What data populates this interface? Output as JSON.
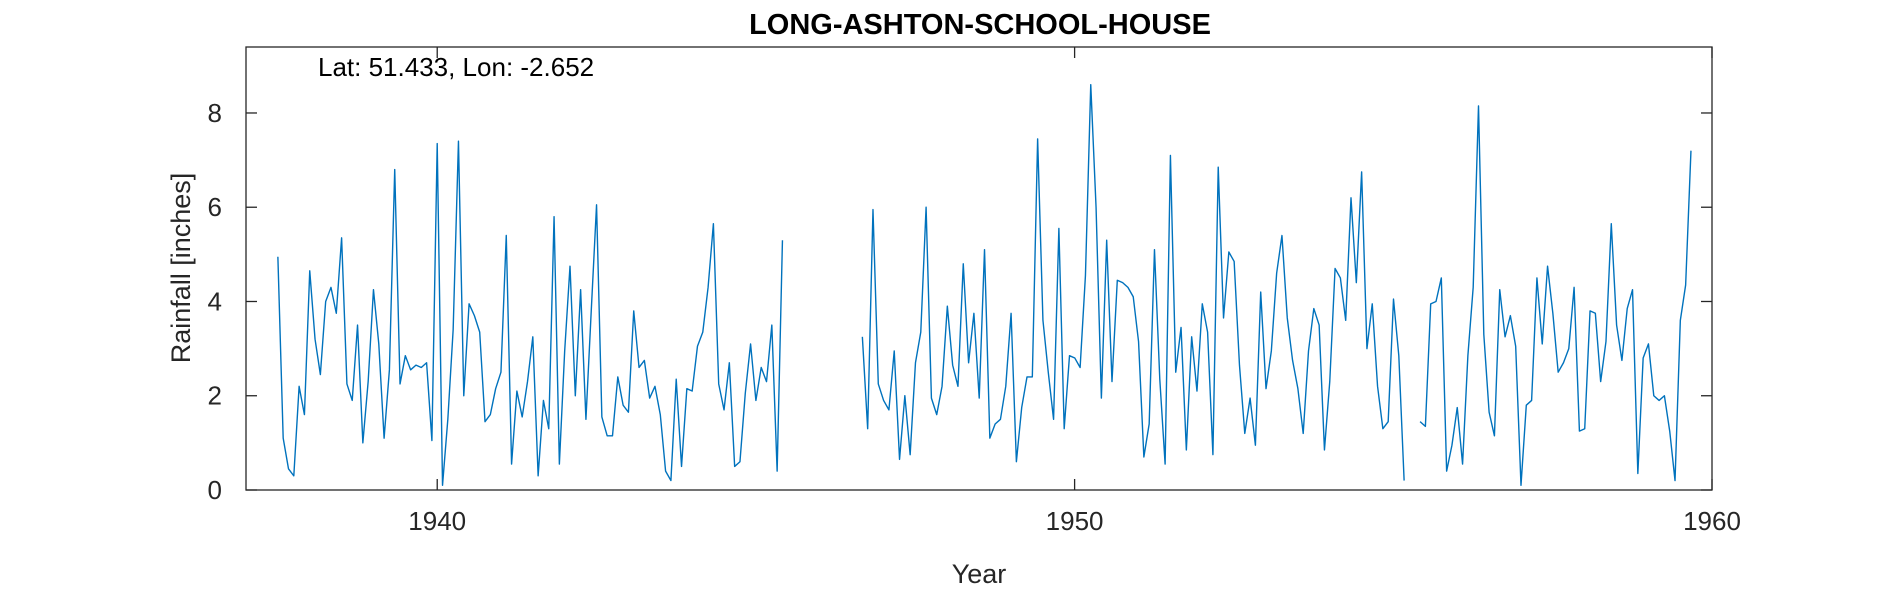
{
  "chart_data": {
    "type": "line",
    "title": "LONG-ASHTON-SCHOOL-HOUSE",
    "annotation": "Lat: 51.433, Lon: -2.652",
    "xlabel": "Year",
    "ylabel": "Rainfall [inches]",
    "xlim": [
      1937,
      1960
    ],
    "ylim": [
      0,
      9.4
    ],
    "xticks": [
      1940,
      1950,
      1960
    ],
    "xtick_labels": [
      "1940",
      "1950",
      "1960"
    ],
    "yticks": [
      0,
      2,
      4,
      6,
      8
    ],
    "ytick_labels": [
      "0",
      "2",
      "4",
      "6",
      "8"
    ],
    "grid": false,
    "line_color": "#0072BD",
    "series": [
      {
        "segments": [
          {
            "start": 1937.5,
            "step": 0.08333,
            "values": [
              4.95,
              1.1,
              0.45,
              0.3,
              2.2,
              1.6,
              4.65,
              3.2,
              2.45,
              4.0,
              4.3,
              3.75,
              5.35,
              2.25,
              1.9,
              3.5,
              1.0,
              2.3,
              4.25,
              3.1,
              1.1,
              2.55,
              6.8,
              2.25,
              2.85,
              2.55,
              2.65,
              2.6,
              2.7,
              1.05,
              7.35,
              0.1,
              1.5,
              3.4,
              7.4,
              2.0,
              3.95,
              3.7,
              3.35,
              1.45,
              1.6,
              2.15,
              2.5,
              5.4,
              0.55,
              2.1,
              1.55,
              2.3,
              3.25,
              0.3,
              1.9,
              1.3,
              5.8,
              0.55,
              2.95,
              4.75,
              2.0,
              4.25,
              1.5,
              3.8,
              6.05,
              1.55,
              1.15,
              1.15,
              2.4,
              1.8,
              1.65,
              3.8,
              2.6,
              2.75,
              1.95,
              2.2,
              1.6,
              0.4,
              0.2,
              2.35,
              0.5,
              2.15,
              2.1,
              3.05,
              3.35,
              4.3,
              5.65,
              2.25,
              1.7,
              2.7,
              0.5,
              0.6,
              2.05,
              3.1,
              1.9,
              2.6,
              2.3,
              3.5,
              0.4,
              5.3
            ]
          },
          {
            "start": 1946.67,
            "step": 0.08333,
            "values": [
              3.25,
              1.3,
              5.95,
              2.25,
              1.9,
              1.7,
              2.95,
              0.65,
              2.0,
              0.75,
              2.7,
              3.35,
              6.0,
              1.95,
              1.6,
              2.2,
              3.9,
              2.65,
              2.2,
              4.8,
              2.7,
              3.75,
              1.95,
              5.1,
              1.1,
              1.4,
              1.5,
              2.2,
              3.75,
              0.6,
              1.75,
              2.4,
              2.4,
              7.45,
              3.6,
              2.5,
              1.5,
              5.55,
              1.3,
              2.85,
              2.8,
              2.6,
              4.55,
              8.6,
              6.0,
              1.95,
              5.3,
              2.3,
              4.45,
              4.4,
              4.3,
              4.1,
              3.15,
              0.7,
              1.4,
              5.1,
              2.35,
              0.55,
              7.1,
              2.5,
              3.45,
              0.85,
              3.25,
              2.1,
              3.95,
              3.35,
              0.75,
              6.85,
              3.65,
              5.05,
              4.85,
              2.65,
              1.2,
              1.95,
              0.95,
              4.2,
              2.15,
              2.95,
              4.6,
              5.4,
              3.65,
              2.75,
              2.15,
              1.2,
              2.95,
              3.85,
              3.5,
              0.85,
              2.3,
              4.7,
              4.5,
              3.6,
              6.2,
              4.4,
              6.75,
              3.0,
              3.95,
              2.2,
              1.3,
              1.45,
              4.05,
              2.85,
              0.2
            ]
          },
          {
            "start": 1955.42,
            "step": 0.08333,
            "values": [
              1.45,
              1.35,
              3.95,
              4.0,
              4.5,
              0.4,
              0.95,
              1.75,
              0.55,
              2.85,
              4.3,
              8.15,
              3.3,
              1.65,
              1.15,
              4.25,
              3.25,
              3.7,
              3.05,
              0.1,
              1.8,
              1.9,
              4.5,
              3.1,
              4.75,
              3.75,
              2.5,
              2.7,
              3.0,
              4.3,
              1.25,
              1.3,
              3.8,
              3.75,
              2.3,
              3.15,
              5.65,
              3.5,
              2.75,
              3.85,
              4.25,
              0.35,
              2.8,
              3.1,
              2.0,
              1.9,
              2.0,
              1.25,
              0.2,
              3.6,
              4.35,
              7.2
            ]
          }
        ]
      }
    ]
  }
}
